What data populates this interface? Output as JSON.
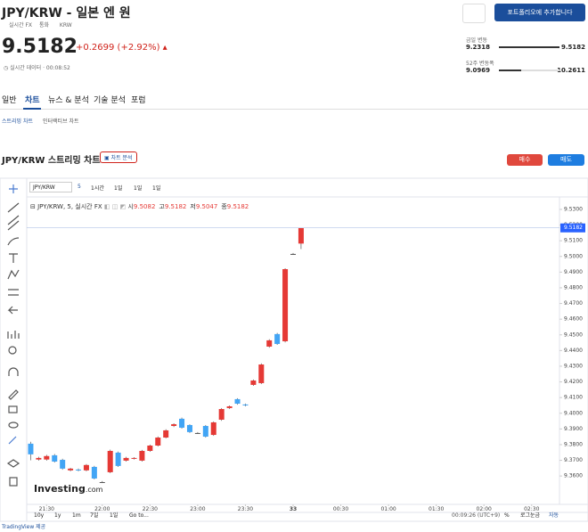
{
  "header": {
    "title": "JPY/KRW - 일본 엔 원",
    "meta": [
      "실시간 FX",
      "통화",
      "KRW"
    ],
    "portfolio_button": "포트폴리오에 추가합니다",
    "price": 9.5182,
    "change": "+0.2699 (+2.92%)",
    "status": "실시간 데이터 · 00:08:52"
  },
  "ranges": [
    {
      "label": "금일 변동",
      "low": 9.2318,
      "high": 9.5182
    },
    {
      "label": "52주 변동폭",
      "low": 9.0969,
      "high": 10.2611
    }
  ],
  "tabs": [
    "일반",
    "차트",
    "뉴스 & 분석",
    "기술 분석",
    "포럼"
  ],
  "subtabs": [
    "스트리밍 차트",
    "인터랙티브 차트"
  ],
  "section": {
    "title": "JPY/KRW 스트리밍 차트",
    "analysis_button": "차트 분석",
    "buy": "매수",
    "sell": "매도"
  },
  "toolbar": {
    "symbol": "JPY/KRW",
    "intervals": [
      "5",
      "1시간",
      "1일",
      "1일",
      "1일"
    ]
  },
  "chart_data": {
    "type": "candlestick",
    "title": "JPY/KRW, 5, 실시간 FX",
    "legend": {
      "labels": [
        "시",
        "고",
        "저",
        "종"
      ],
      "values": [
        9.5082,
        9.5182,
        9.5047,
        9.5182
      ]
    },
    "x": [
      0,
      1,
      2,
      3,
      4,
      5,
      6,
      7,
      8,
      9,
      10,
      11,
      12,
      13,
      14,
      15,
      16,
      17,
      18,
      19,
      20,
      21,
      22,
      23,
      24,
      25,
      26,
      27,
      28,
      29,
      30,
      31,
      32,
      33,
      34
    ],
    "open": [
      9.3806,
      9.3705,
      9.3705,
      9.3732,
      9.3703,
      9.3636,
      9.3641,
      9.3636,
      9.3658,
      9.3561,
      9.3624,
      9.3749,
      9.3698,
      9.371,
      9.3698,
      9.376,
      9.3794,
      9.3845,
      9.3919,
      9.3965,
      9.3925,
      9.3874,
      9.3919,
      9.3862,
      9.3959,
      9.4033,
      9.409,
      9.4056,
      9.4181,
      9.4192,
      9.4425,
      9.4505,
      9.4459,
      9.5016,
      9.5082
    ],
    "high": [
      9.3818,
      9.3722,
      9.3735,
      9.374,
      9.371,
      9.3652,
      9.3648,
      9.3676,
      9.3665,
      9.3568,
      9.3768,
      9.3756,
      9.3722,
      9.372,
      9.3766,
      9.38,
      9.3852,
      9.3898,
      9.3936,
      9.3972,
      9.393,
      9.388,
      9.3925,
      9.3948,
      9.4033,
      9.405,
      9.4096,
      9.4062,
      9.4215,
      9.4318,
      9.4472,
      9.4512,
      9.4925,
      9.5022,
      9.5182
    ],
    "low": [
      9.37,
      9.3698,
      9.3698,
      9.3686,
      9.364,
      9.363,
      9.363,
      9.363,
      9.3578,
      9.3555,
      9.3618,
      9.3658,
      9.3692,
      9.3705,
      9.3692,
      9.3754,
      9.3788,
      9.384,
      9.3912,
      9.3902,
      9.3874,
      9.3868,
      9.3845,
      9.3856,
      9.3952,
      9.4027,
      9.4055,
      9.4044,
      9.4175,
      9.4186,
      9.4418,
      9.4436,
      9.4452,
      9.501,
      9.5047
    ],
    "close": [
      9.3738,
      9.3715,
      9.3727,
      9.3692,
      9.3647,
      9.3647,
      9.3636,
      9.367,
      9.3584,
      9.3561,
      9.376,
      9.3664,
      9.3715,
      9.3715,
      9.376,
      9.3794,
      9.3845,
      9.3891,
      9.393,
      9.3908,
      9.388,
      9.3874,
      9.3851,
      9.3942,
      9.4027,
      9.4044,
      9.4061,
      9.405,
      9.4209,
      9.4311,
      9.4465,
      9.4442,
      9.4919,
      9.5016,
      9.5182
    ],
    "up_color": "#e53935",
    "down_color": "#42a5f5",
    "grid": false,
    "xlim": [
      -0.5,
      66.5
    ],
    "xticks": [
      {
        "value": 2,
        "label": "21:30"
      },
      {
        "value": 9,
        "label": "22:00"
      },
      {
        "value": 15,
        "label": "22:30"
      },
      {
        "value": 21,
        "label": "23:00"
      },
      {
        "value": 27,
        "label": "23:30"
      },
      33,
      {
        "value": 39,
        "label": "00:30"
      },
      {
        "value": 45,
        "label": "01:00"
      },
      {
        "value": 51,
        "label": "01:30"
      },
      {
        "value": 57,
        "label": "02:00"
      },
      {
        "value": 63,
        "label": "02:30"
      }
    ],
    "ylim": [
      9.3419,
      9.5351
    ],
    "yticks": [
      {
        "value": 9.36,
        "label": "9.3600"
      },
      {
        "value": 9.37,
        "label": "9.3700"
      },
      {
        "value": 9.38,
        "label": "9.3800"
      },
      {
        "value": 9.39,
        "label": "9.3900"
      },
      {
        "value": 9.4,
        "label": "9.4000"
      },
      {
        "value": 9.41,
        "label": "9.4100"
      },
      {
        "value": 9.42,
        "label": "9.4200"
      },
      {
        "value": 9.43,
        "label": "9.4300"
      },
      {
        "value": 9.44,
        "label": "9.4400"
      },
      {
        "value": 9.45,
        "label": "9.4500"
      },
      {
        "value": 9.46,
        "label": "9.4600"
      },
      {
        "value": 9.47,
        "label": "9.4700"
      },
      {
        "value": 9.48,
        "label": "9.4800"
      },
      {
        "value": 9.49,
        "label": "9.4900"
      },
      {
        "value": 9.5,
        "label": "9.5000"
      },
      {
        "value": 9.51,
        "label": "9.5100"
      },
      {
        "value": 9.52,
        "label": "9.5200"
      },
      {
        "value": 9.53,
        "label": "9.5300"
      }
    ],
    "watermark": [
      "Investing",
      ".com"
    ]
  },
  "bottom_bar": {
    "ranges": [
      "10y",
      "1y",
      "1m",
      "7일",
      "1일"
    ],
    "goto": "Go to...",
    "time": "00:09:26 (UTC+9)",
    "percent": "%",
    "log": "로그눈금",
    "auto": "자동"
  },
  "footer": "TradingView 제공"
}
